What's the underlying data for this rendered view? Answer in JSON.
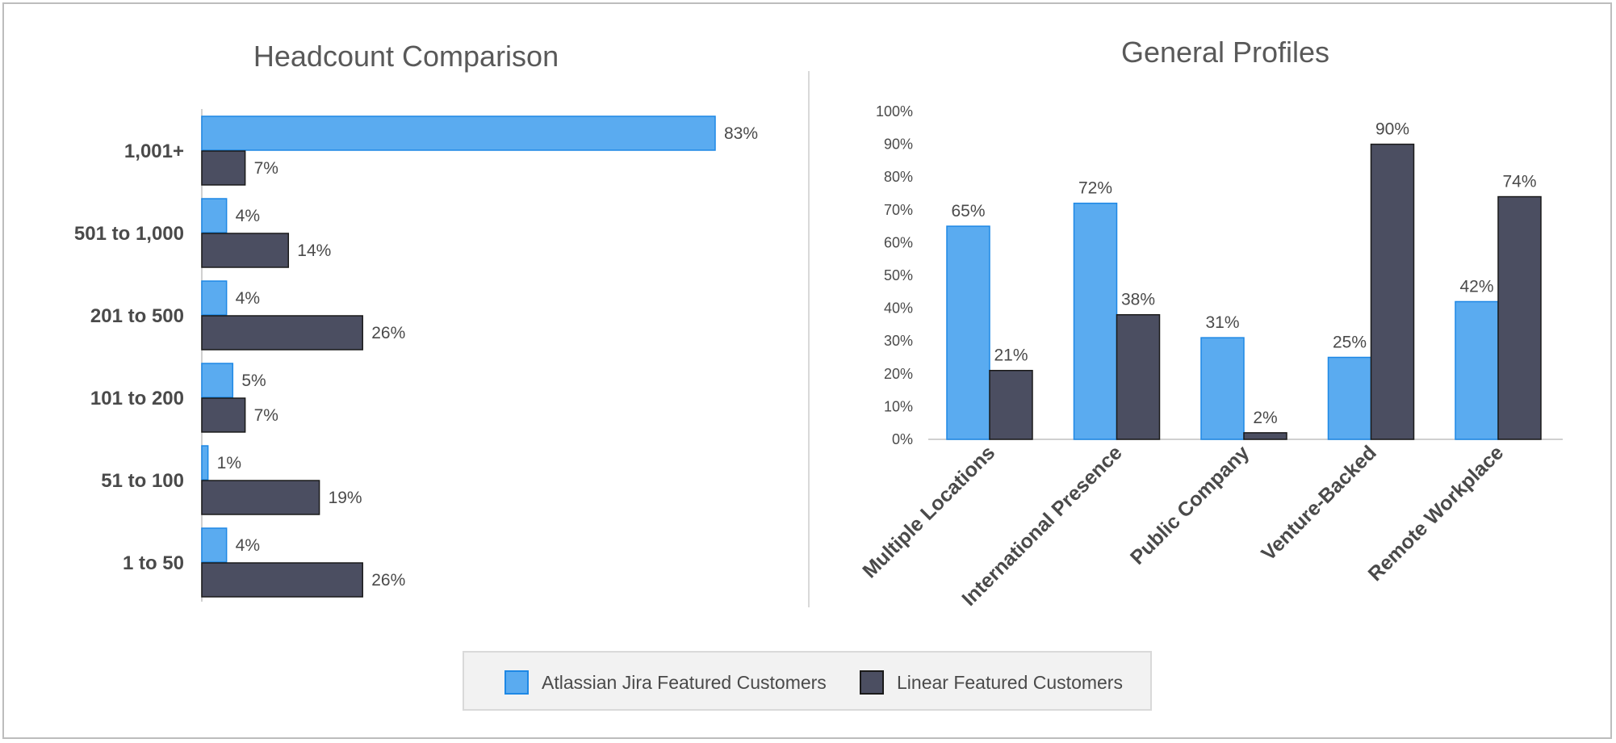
{
  "colors": {
    "jira": "#5aabf0",
    "jira_border": "#1e88e5",
    "linear": "#4b4e61",
    "linear_border": "#1a1a1a",
    "axis": "#d0d0d0"
  },
  "legend": {
    "jira_label": "Atlassian Jira Featured Customers",
    "linear_label": "Linear Featured Customers"
  },
  "chart_data": [
    {
      "type": "bar",
      "orientation": "horizontal",
      "title": "Headcount Comparison",
      "categories": [
        "1,001+",
        "501 to 1,000",
        "201 to 500",
        "101 to 200",
        "51 to 100",
        "1 to 50"
      ],
      "series": [
        {
          "name": "Atlassian Jira Featured Customers",
          "values": [
            83,
            4,
            4,
            5,
            1,
            4
          ]
        },
        {
          "name": "Linear Featured Customers",
          "values": [
            7,
            14,
            26,
            7,
            19,
            26
          ]
        }
      ],
      "value_labels": {
        "jira": [
          "83%",
          "4%",
          "4%",
          "5%",
          "1%",
          "4%"
        ],
        "linear": [
          "7%",
          "14%",
          "26%",
          "7%",
          "19%",
          "26%"
        ]
      },
      "xlim": [
        0,
        100
      ],
      "grid": false,
      "legend": "bottom"
    },
    {
      "type": "bar",
      "orientation": "vertical",
      "title": "General Profiles",
      "categories": [
        "Multiple Locations",
        "International Presence",
        "Public Company",
        "Venture-Backed",
        "Remote Workplace"
      ],
      "series": [
        {
          "name": "Atlassian Jira Featured Customers",
          "values": [
            65,
            72,
            31,
            25,
            42
          ]
        },
        {
          "name": "Linear Featured Customers",
          "values": [
            21,
            38,
            2,
            90,
            74
          ]
        }
      ],
      "value_labels": {
        "jira": [
          "65%",
          "72%",
          "31%",
          "25%",
          "42%"
        ],
        "linear": [
          "21%",
          "38%",
          "2%",
          "90%",
          "74%"
        ]
      },
      "ylim": [
        0,
        100
      ],
      "yticks": [
        "0%",
        "10%",
        "20%",
        "30%",
        "40%",
        "50%",
        "60%",
        "70%",
        "80%",
        "90%",
        "100%"
      ],
      "grid": false,
      "legend": "bottom"
    }
  ]
}
